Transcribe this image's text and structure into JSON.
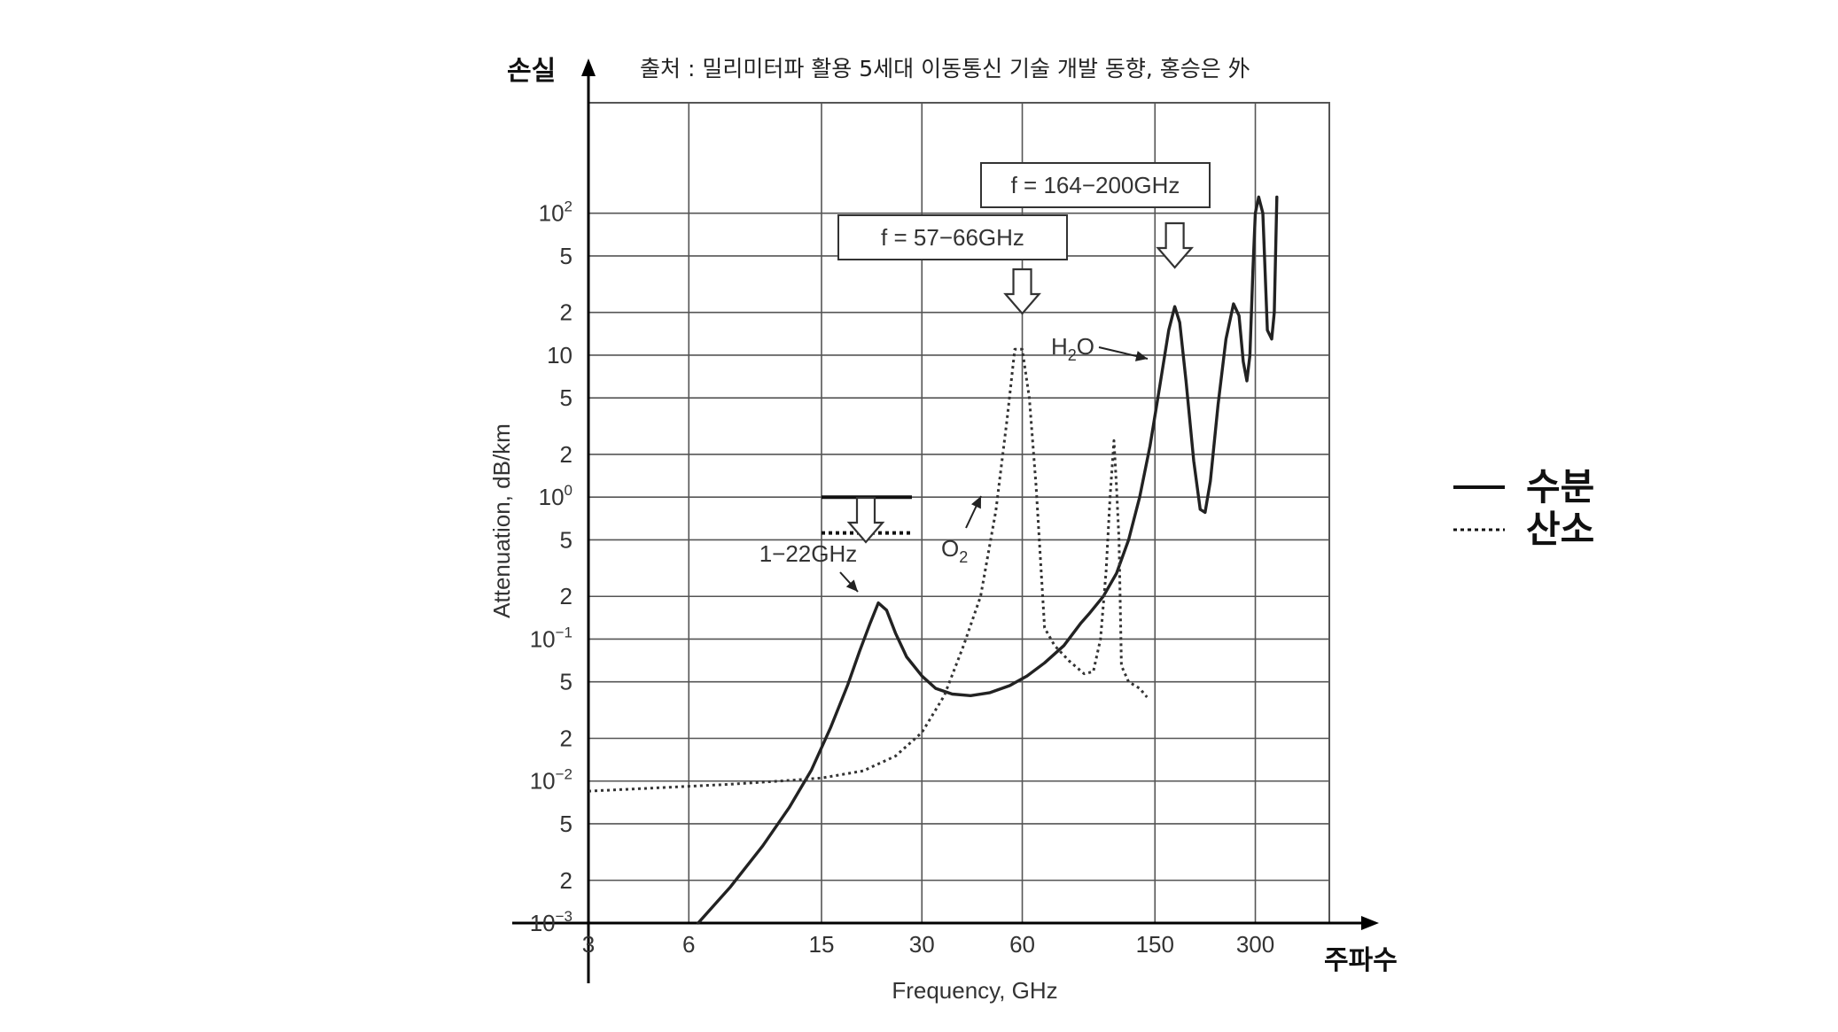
{
  "source_caption": "출처 : 밀리미터파 활용 5세대 이동통신 기술 개발 동향, 홍승은 外",
  "chart_data": {
    "type": "line",
    "title": "",
    "y_top_label": "손실",
    "x_right_label": "주파수",
    "ylabel": "Attenuation, dB/km",
    "xlabel": "Frequency, GHz",
    "x_scale": "log",
    "y_scale": "log",
    "xlim": [
      3,
      500
    ],
    "ylim": [
      0.001,
      600
    ],
    "grid": true,
    "x_ticks": [
      {
        "value": 3,
        "label": "3"
      },
      {
        "value": 6,
        "label": "6"
      },
      {
        "value": 15,
        "label": "15"
      },
      {
        "value": 30,
        "label": "30"
      },
      {
        "value": 60,
        "label": "60"
      },
      {
        "value": 150,
        "label": "150"
      },
      {
        "value": 300,
        "label": "300"
      }
    ],
    "x_grid": [
      3,
      6,
      15,
      30,
      60,
      150,
      300,
      500
    ],
    "y_ticks": [
      {
        "value": 0.001,
        "base": "10",
        "exp": "−3"
      },
      {
        "value": 0.002,
        "base": "2",
        "exp": ""
      },
      {
        "value": 0.005,
        "base": "5",
        "exp": ""
      },
      {
        "value": 0.01,
        "base": "10",
        "exp": "−2"
      },
      {
        "value": 0.02,
        "base": "2",
        "exp": ""
      },
      {
        "value": 0.05,
        "base": "5",
        "exp": ""
      },
      {
        "value": 0.1,
        "base": "10",
        "exp": "−1"
      },
      {
        "value": 0.2,
        "base": "2",
        "exp": ""
      },
      {
        "value": 0.5,
        "base": "5",
        "exp": ""
      },
      {
        "value": 1,
        "base": "10",
        "exp": "0"
      },
      {
        "value": 2,
        "base": "2",
        "exp": ""
      },
      {
        "value": 5,
        "base": "5",
        "exp": ""
      },
      {
        "value": 10,
        "base": "10",
        "exp": ""
      },
      {
        "value": 20,
        "base": "2",
        "exp": ""
      },
      {
        "value": 50,
        "base": "5",
        "exp": ""
      },
      {
        "value": 100,
        "base": "10",
        "exp": "2"
      }
    ],
    "series": [
      {
        "name": "수분",
        "style": "solid",
        "color": "#222222",
        "points": [
          [
            6.4,
            0.001
          ],
          [
            8,
            0.0018
          ],
          [
            10,
            0.0035
          ],
          [
            12,
            0.0065
          ],
          [
            14,
            0.012
          ],
          [
            16,
            0.024
          ],
          [
            18,
            0.048
          ],
          [
            19.5,
            0.082
          ],
          [
            21,
            0.13
          ],
          [
            22.2,
            0.18
          ],
          [
            23.5,
            0.16
          ],
          [
            25,
            0.11
          ],
          [
            27,
            0.075
          ],
          [
            30,
            0.055
          ],
          [
            33,
            0.045
          ],
          [
            37,
            0.041
          ],
          [
            42,
            0.04
          ],
          [
            48,
            0.042
          ],
          [
            55,
            0.047
          ],
          [
            62,
            0.055
          ],
          [
            70,
            0.068
          ],
          [
            80,
            0.09
          ],
          [
            90,
            0.13
          ],
          [
            95,
            0.15
          ],
          [
            105,
            0.2
          ],
          [
            115,
            0.29
          ],
          [
            125,
            0.5
          ],
          [
            135,
            1.0
          ],
          [
            145,
            2.3
          ],
          [
            155,
            6
          ],
          [
            165,
            15
          ],
          [
            172,
            22
          ],
          [
            178,
            17
          ],
          [
            186,
            6.5
          ],
          [
            196,
            1.8
          ],
          [
            205,
            0.82
          ],
          [
            212,
            0.78
          ],
          [
            220,
            1.3
          ],
          [
            232,
            4.5
          ],
          [
            245,
            13
          ],
          [
            258,
            23
          ],
          [
            268,
            19
          ],
          [
            276,
            9
          ],
          [
            283,
            6.6
          ],
          [
            289,
            10
          ],
          [
            295,
            40
          ],
          [
            300,
            100
          ],
          [
            307,
            130
          ],
          [
            316,
            100
          ],
          [
            326,
            15
          ],
          [
            336,
            13
          ],
          [
            342,
            20
          ],
          [
            348,
            130
          ]
        ]
      },
      {
        "name": "산소",
        "style": "dotted",
        "color": "#333333",
        "points": [
          [
            3,
            0.0085
          ],
          [
            5,
            0.009
          ],
          [
            8,
            0.0095
          ],
          [
            12,
            0.0101
          ],
          [
            15,
            0.0105
          ],
          [
            20,
            0.0118
          ],
          [
            25,
            0.015
          ],
          [
            30,
            0.022
          ],
          [
            35,
            0.04
          ],
          [
            40,
            0.09
          ],
          [
            45,
            0.2
          ],
          [
            50,
            0.8
          ],
          [
            54,
            3.5
          ],
          [
            57,
            11
          ],
          [
            60,
            11
          ],
          [
            63,
            5
          ],
          [
            66,
            1.2
          ],
          [
            70,
            0.12
          ],
          [
            75,
            0.09
          ],
          [
            83,
            0.07
          ],
          [
            92,
            0.057
          ],
          [
            98,
            0.059
          ],
          [
            103,
            0.1
          ],
          [
            107,
            0.3
          ],
          [
            110,
            1.0
          ],
          [
            113,
            2.5
          ],
          [
            115,
            1.2
          ],
          [
            117,
            0.5
          ],
          [
            119,
            0.065
          ],
          [
            125,
            0.05
          ],
          [
            135,
            0.045
          ],
          [
            142,
            0.039
          ]
        ]
      }
    ],
    "standard_levels": {
      "range": [
        15,
        28
      ],
      "solid_level": 1.0,
      "dotted_level": 0.56
    },
    "annotations": [
      {
        "text": "f = 57−66GHz",
        "points_to": [
          60,
          11
        ]
      },
      {
        "text": "f = 164−200GHz",
        "points_to": [
          172,
          22
        ]
      },
      {
        "text": "1−22GHz",
        "points_to": [
          22,
          0.17
        ]
      },
      {
        "text_main": "O",
        "text_sub": "2",
        "points_to": [
          45,
          0.4
        ]
      },
      {
        "text_main": "H",
        "text_sub": "2",
        "text_after": "O",
        "points_to": [
          155,
          7
        ]
      }
    ],
    "legend": {
      "placement": "right",
      "items": [
        {
          "label": "수분",
          "style": "solid"
        },
        {
          "label": "산소",
          "style": "dotted"
        }
      ]
    }
  }
}
